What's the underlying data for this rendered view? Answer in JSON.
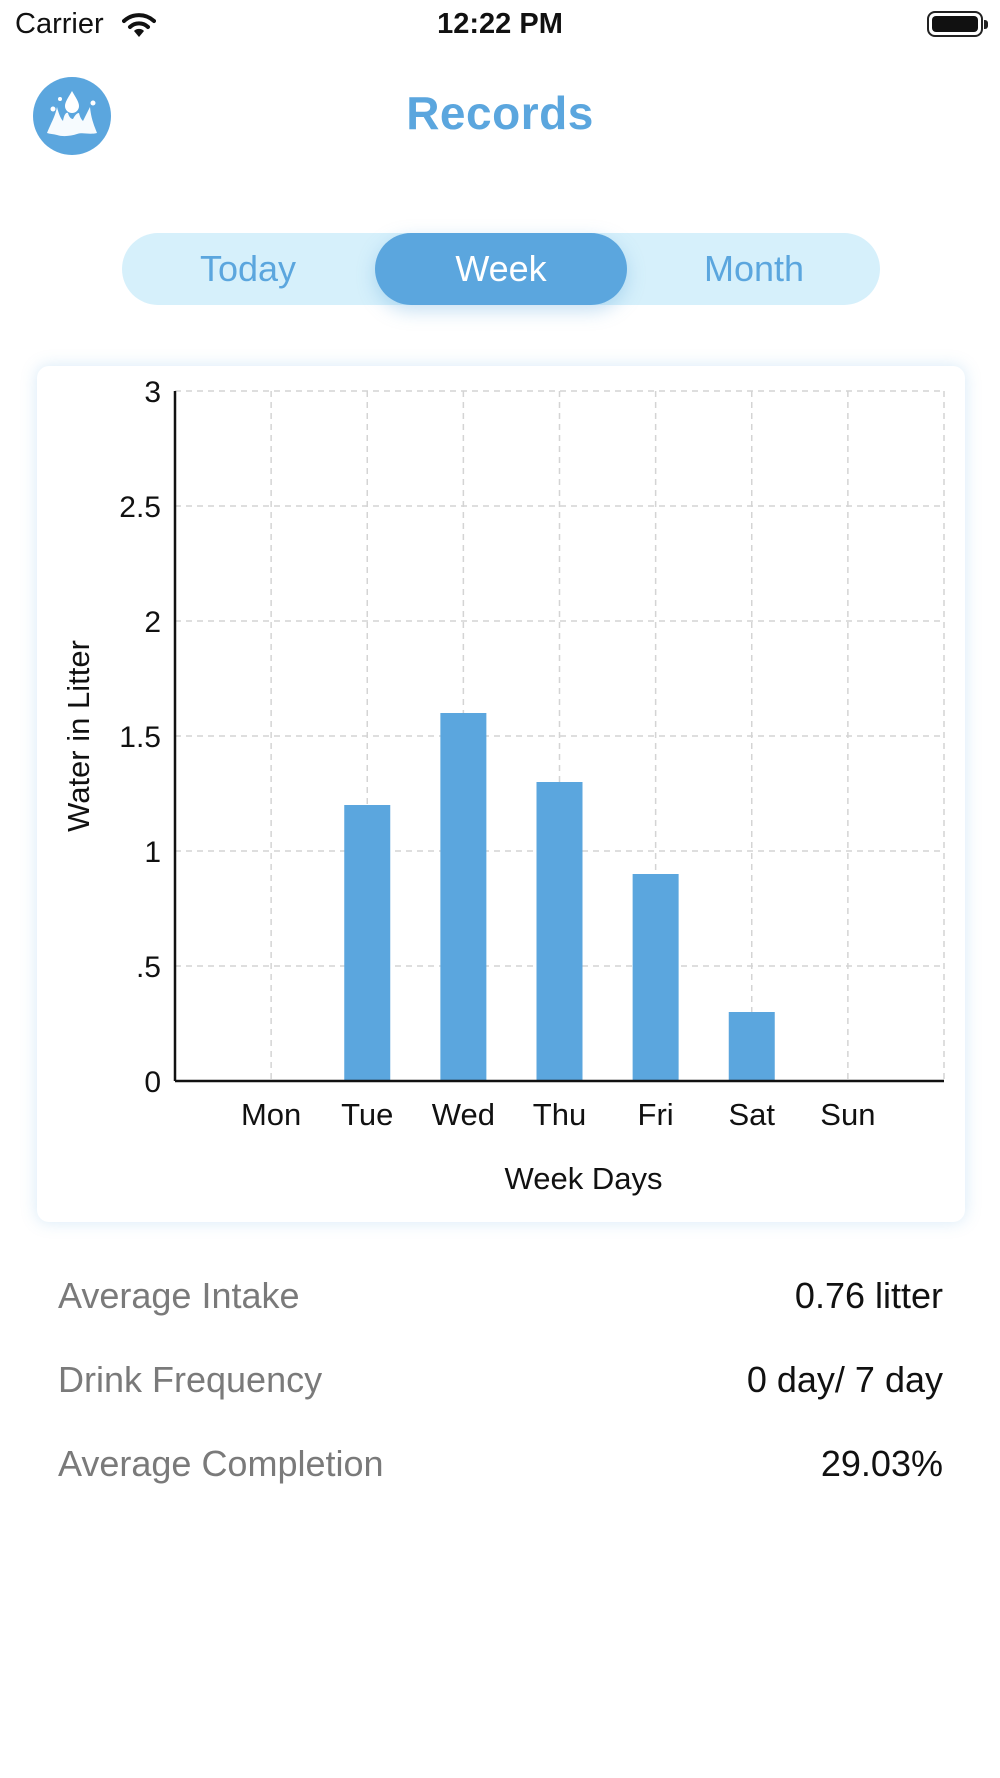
{
  "status_bar": {
    "carrier": "Carrier",
    "time": "12:22 PM"
  },
  "header": {
    "title": "Records",
    "logo_icon": "water-splash-icon"
  },
  "segments": {
    "items": [
      {
        "label": "Today",
        "selected": false
      },
      {
        "label": "Week",
        "selected": true
      },
      {
        "label": "Month",
        "selected": false
      }
    ]
  },
  "chart_data": {
    "type": "bar",
    "categories": [
      "Mon",
      "Tue",
      "Wed",
      "Thu",
      "Fri",
      "Sat",
      "Sun"
    ],
    "values": [
      0,
      1.2,
      1.6,
      1.3,
      0.9,
      0.3,
      0
    ],
    "y_ticks": [
      "0",
      ".5",
      "1",
      "1.5",
      "2",
      "2.5",
      "3"
    ],
    "xlabel": "Week Days",
    "ylabel": "Water in Litter",
    "ylim": [
      0,
      3
    ],
    "grid": true,
    "bar_color": "#5ba6de"
  },
  "stats": [
    {
      "label": "Average Intake",
      "value": "0.76 litter"
    },
    {
      "label": "Drink Frequency",
      "value": "0 day/ 7 day"
    },
    {
      "label": "Average Completion",
      "value": "29.03%"
    }
  ],
  "colors": {
    "accent": "#5ba6de",
    "segment_background": "#d6f0fb",
    "stat_label": "#7a7a7a"
  }
}
